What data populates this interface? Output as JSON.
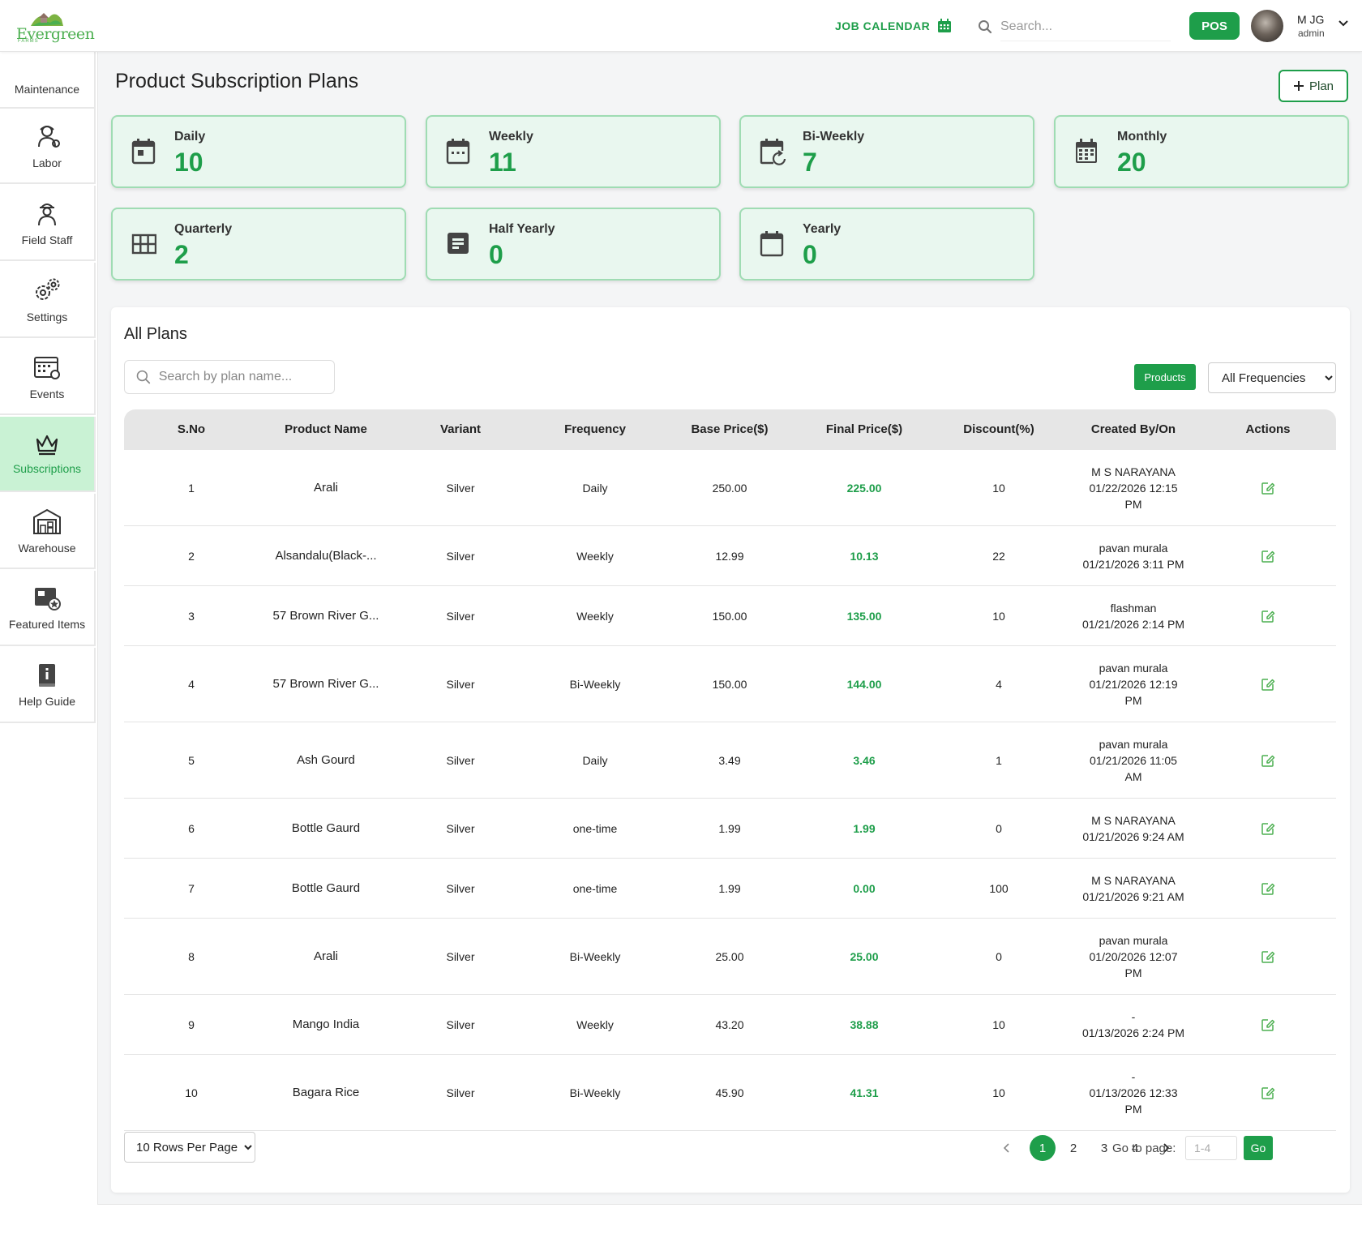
{
  "header": {
    "logo_text": "Evergreen",
    "logo_sub": "FARMS",
    "job_calendar_label": "JOB CALENDAR",
    "search_placeholder": "Search...",
    "pos_label": "POS",
    "user_name": "M JG",
    "user_role": "admin"
  },
  "sidebar": {
    "items": [
      {
        "label": "Maintenance",
        "icon": "maintenance-icon"
      },
      {
        "label": "Labor",
        "icon": "labor-icon"
      },
      {
        "label": "Field Staff",
        "icon": "field-staff-icon"
      },
      {
        "label": "Settings",
        "icon": "gear-icon"
      },
      {
        "label": "Events",
        "icon": "events-calendar-icon"
      },
      {
        "label": "Subscriptions",
        "icon": "crown-icon",
        "active": true
      },
      {
        "label": "Warehouse",
        "icon": "warehouse-icon"
      },
      {
        "label": "Featured Items",
        "icon": "featured-items-icon"
      },
      {
        "label": "Help Guide",
        "icon": "help-guide-icon"
      }
    ]
  },
  "page": {
    "title": "Product Subscription Plans",
    "add_plan_label": "Plan"
  },
  "cards": [
    {
      "label": "Daily",
      "value": "10",
      "icon": "calendar-day-icon"
    },
    {
      "label": "Weekly",
      "value": "11",
      "icon": "calendar-week-icon"
    },
    {
      "label": "Bi-Weekly",
      "value": "7",
      "icon": "calendar-repeat-icon"
    },
    {
      "label": "Monthly",
      "value": "20",
      "icon": "calendar-month-icon"
    },
    {
      "label": "Quarterly",
      "value": "2",
      "icon": "grid-icon"
    },
    {
      "label": "Half Yearly",
      "value": "0",
      "icon": "document-icon"
    },
    {
      "label": "Yearly",
      "value": "0",
      "icon": "calendar-blank-icon"
    }
  ],
  "plans": {
    "title": "All Plans",
    "search_placeholder": "Search by plan name...",
    "products_label": "Products",
    "frequency_selected": "All Frequencies",
    "columns": [
      "S.No",
      "Product Name",
      "Variant",
      "Frequency",
      "Base Price($)",
      "Final Price($)",
      "Discount(%)",
      "Created By/On",
      "Actions"
    ],
    "rows": [
      {
        "sno": "1",
        "name": "Arali",
        "variant": "Silver",
        "frequency": "Daily",
        "base": "250.00",
        "final": "225.00",
        "discount": "10",
        "created_by": "M S NARAYANA",
        "created_on": "01/22/2026 12:15 PM"
      },
      {
        "sno": "2",
        "name": "Alsandalu(Black-...",
        "variant": "Silver",
        "frequency": "Weekly",
        "base": "12.99",
        "final": "10.13",
        "discount": "22",
        "created_by": "pavan murala",
        "created_on": "01/21/2026 3:11 PM"
      },
      {
        "sno": "3",
        "name": "57 Brown River G...",
        "variant": "Silver",
        "frequency": "Weekly",
        "base": "150.00",
        "final": "135.00",
        "discount": "10",
        "created_by": "flashman",
        "created_on": "01/21/2026 2:14 PM"
      },
      {
        "sno": "4",
        "name": "57 Brown River G...",
        "variant": "Silver",
        "frequency": "Bi-Weekly",
        "base": "150.00",
        "final": "144.00",
        "discount": "4",
        "created_by": "pavan murala",
        "created_on": "01/21/2026 12:19 PM"
      },
      {
        "sno": "5",
        "name": "Ash Gourd",
        "variant": "Silver",
        "frequency": "Daily",
        "base": "3.49",
        "final": "3.46",
        "discount": "1",
        "created_by": "pavan murala",
        "created_on": "01/21/2026 11:05 AM"
      },
      {
        "sno": "6",
        "name": "Bottle Gaurd",
        "variant": "Silver",
        "frequency": "one-time",
        "base": "1.99",
        "final": "1.99",
        "discount": "0",
        "created_by": "M S NARAYANA",
        "created_on": "01/21/2026 9:24 AM"
      },
      {
        "sno": "7",
        "name": "Bottle Gaurd",
        "variant": "Silver",
        "frequency": "one-time",
        "base": "1.99",
        "final": "0.00",
        "discount": "100",
        "created_by": "M S NARAYANA",
        "created_on": "01/21/2026 9:21 AM"
      },
      {
        "sno": "8",
        "name": "Arali",
        "variant": "Silver",
        "frequency": "Bi-Weekly",
        "base": "25.00",
        "final": "25.00",
        "discount": "0",
        "created_by": "pavan murala",
        "created_on": "01/20/2026 12:07 PM"
      },
      {
        "sno": "9",
        "name": "Mango India",
        "variant": "Silver",
        "frequency": "Weekly",
        "base": "43.20",
        "final": "38.88",
        "discount": "10",
        "created_by": "-",
        "created_on": "01/13/2026 2:24 PM"
      },
      {
        "sno": "10",
        "name": "Bagara Rice",
        "variant": "Silver",
        "frequency": "Bi-Weekly",
        "base": "45.90",
        "final": "41.31",
        "discount": "10",
        "created_by": "-",
        "created_on": "01/13/2026 12:33 PM"
      }
    ]
  },
  "pagination": {
    "rows_per_page": "10 Rows Per Page",
    "pages": [
      "1",
      "2",
      "3",
      "4"
    ],
    "current_page": "1",
    "goto_label": "Go to page:",
    "goto_placeholder": "1-4",
    "go_label": "Go"
  },
  "colors": {
    "accent": "#1e9e4a",
    "card_bg": "#e9f7ef",
    "active_nav_bg": "#c9f2d4"
  }
}
